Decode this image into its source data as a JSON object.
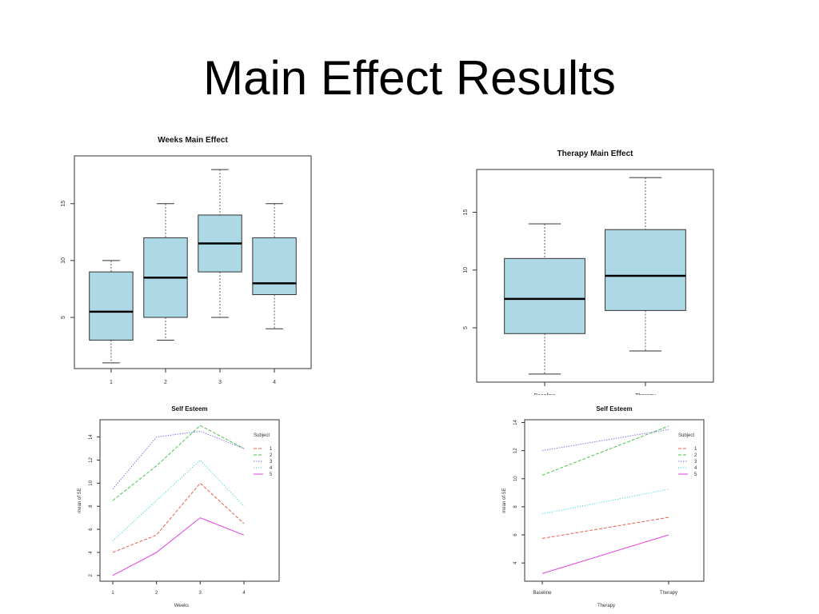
{
  "slide": {
    "title": "Main Effect Results"
  },
  "colors": {
    "box_fill": "#add8e6",
    "box_stroke": "#333333",
    "frame": "#333333",
    "s1": "#e8604c",
    "s2": "#4fc24f",
    "s3": "#7a7ae0",
    "s4": "#22d4d4",
    "s5": "#e040e0"
  },
  "chart_data": [
    {
      "type": "box",
      "title": "Weeks Main Effect",
      "categories": [
        "1",
        "2",
        "3",
        "4"
      ],
      "yticks": [
        5,
        10,
        15
      ],
      "ylim": [
        0.5,
        19.2
      ],
      "boxes": [
        {
          "min": 1,
          "q1": 3,
          "median": 5.5,
          "q3": 9,
          "max": 10
        },
        {
          "min": 3,
          "q1": 5,
          "median": 8.5,
          "q3": 12,
          "max": 15
        },
        {
          "min": 5,
          "q1": 9,
          "median": 11.5,
          "q3": 14,
          "max": 18
        },
        {
          "min": 4,
          "q1": 7,
          "median": 8,
          "q3": 12,
          "max": 15
        }
      ]
    },
    {
      "type": "box",
      "title": "Therapy Main Effect",
      "categories": [
        "Baseline",
        "Therapy"
      ],
      "yticks": [
        5,
        10,
        15
      ],
      "ylim": [
        0.3,
        18.7
      ],
      "boxes": [
        {
          "min": 1,
          "q1": 4.5,
          "median": 7.5,
          "q3": 11,
          "max": 14
        },
        {
          "min": 3,
          "q1": 6.5,
          "median": 9.5,
          "q3": 13.5,
          "max": 18
        }
      ]
    },
    {
      "type": "line",
      "title": "Self Esteem",
      "xlabel": "Weeks",
      "ylabel": "mean of  SE",
      "legend_title": "Subject",
      "categories": [
        "1",
        "2",
        "3",
        "4"
      ],
      "yticks": [
        2,
        4,
        6,
        8,
        10,
        12,
        14
      ],
      "ylim": [
        1.5,
        15.5
      ],
      "series": [
        {
          "name": "1",
          "values": [
            4,
            5.5,
            10,
            6.5
          ]
        },
        {
          "name": "2",
          "values": [
            8.5,
            11.5,
            15,
            13
          ]
        },
        {
          "name": "3",
          "values": [
            9.5,
            14,
            14.5,
            13
          ]
        },
        {
          "name": "4",
          "values": [
            5,
            8.5,
            12,
            8
          ]
        },
        {
          "name": "5",
          "values": [
            2,
            4,
            7,
            5.5
          ]
        }
      ]
    },
    {
      "type": "line",
      "title": "Self Esteem",
      "xlabel": "Therapy",
      "ylabel": "mean of  SE",
      "legend_title": "Subject",
      "categories": [
        "Baseline",
        "Therapy"
      ],
      "yticks": [
        4,
        6,
        8,
        10,
        12,
        14
      ],
      "ylim": [
        2.7,
        14.2
      ],
      "series": [
        {
          "name": "1",
          "values": [
            5.75,
            7.25
          ]
        },
        {
          "name": "2",
          "values": [
            10.25,
            13.75
          ]
        },
        {
          "name": "3",
          "values": [
            12,
            13.5
          ]
        },
        {
          "name": "4",
          "values": [
            7.5,
            9.25
          ]
        },
        {
          "name": "5",
          "values": [
            3.25,
            6
          ]
        }
      ]
    }
  ]
}
